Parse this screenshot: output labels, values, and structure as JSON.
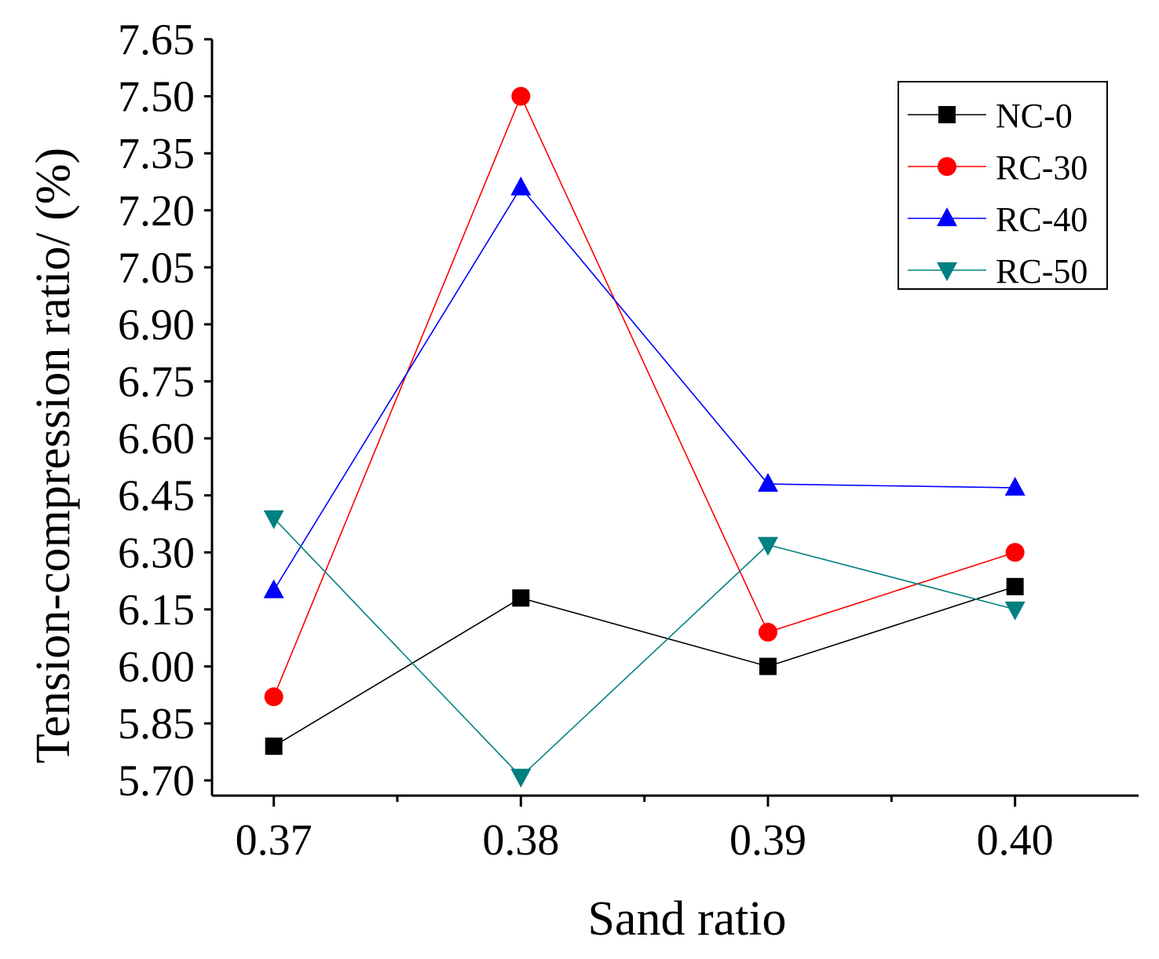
{
  "chart_data": {
    "type": "line",
    "title": "",
    "xlabel": "Sand ratio",
    "ylabel": "Tension-compression ratio/ (%)",
    "x": [
      0.37,
      0.38,
      0.39,
      0.4
    ],
    "x_tick_labels": [
      "0.37",
      "0.38",
      "0.39",
      "0.40"
    ],
    "xlim": [
      0.3675,
      0.405
    ],
    "ylim": [
      5.66,
      7.65
    ],
    "y_ticks": [
      5.7,
      5.85,
      6.0,
      6.15,
      6.3,
      6.45,
      6.6,
      6.75,
      6.9,
      7.05,
      7.2,
      7.35,
      7.5,
      7.65
    ],
    "y_tick_labels": [
      "5.70",
      "5.85",
      "6.00",
      "6.15",
      "6.30",
      "6.45",
      "6.60",
      "6.75",
      "6.90",
      "7.05",
      "7.20",
      "7.35",
      "7.50",
      "7.65"
    ],
    "grid": false,
    "legend_position": "top-right",
    "series": [
      {
        "name": "NC-0",
        "values": [
          5.79,
          6.18,
          6.0,
          6.21
        ],
        "color": "#000000",
        "marker": "square"
      },
      {
        "name": "RC-30",
        "values": [
          5.92,
          7.5,
          6.09,
          6.3
        ],
        "color": "#ff0000",
        "marker": "circle"
      },
      {
        "name": "RC-40",
        "values": [
          6.2,
          7.26,
          6.48,
          6.47
        ],
        "color": "#0000ff",
        "marker": "triangle-up"
      },
      {
        "name": "RC-50",
        "values": [
          6.39,
          5.71,
          6.32,
          6.15
        ],
        "color": "#008080",
        "marker": "triangle-down"
      }
    ]
  }
}
